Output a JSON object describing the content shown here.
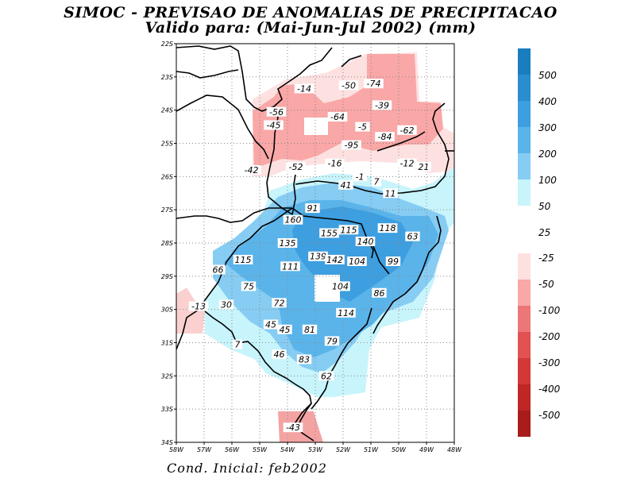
{
  "title": "SIMOC - PREVISAO DE ANOMALIAS DE PRECIPITACAO",
  "subtitle": "Valido para: (Mai-Jun-Jul 2002) (mm)",
  "footer": "Cond. Inicial: feb2002",
  "map": {
    "lat_labels": [
      "22S",
      "23S",
      "24S",
      "25S",
      "26S",
      "27S",
      "28S",
      "29S",
      "30S",
      "31S",
      "32S",
      "33S",
      "34S"
    ],
    "lon_labels": [
      "58W",
      "57W",
      "56W",
      "55W",
      "54W",
      "53W",
      "52W",
      "51W",
      "50W",
      "49W",
      "48W"
    ],
    "lat_range": [
      -34,
      -22
    ],
    "lon_range": [
      -58,
      -48
    ],
    "grid": "dotted"
  },
  "colorbar_positive": {
    "labels": [
      "500",
      "400",
      "300",
      "200",
      "100",
      "50",
      "25"
    ],
    "colors": [
      "#1a7dbe",
      "#2a8dd0",
      "#3d9ee0",
      "#5ab4ea",
      "#86ccf3",
      "#c8f4fb"
    ]
  },
  "colorbar_negative": {
    "labels": [
      "-25",
      "-50",
      "-100",
      "-200",
      "-300",
      "-400",
      "-500"
    ],
    "colors": [
      "#fde1e1",
      "#f9a7a7",
      "#ed7777",
      "#e25252",
      "#d23838",
      "#bf2626",
      "#a81c1c"
    ]
  },
  "contour_labels": [
    {
      "text": "-14",
      "lon": -53.4,
      "lat": -23.35
    },
    {
      "text": "-50",
      "lon": -51.8,
      "lat": -23.25
    },
    {
      "text": "-74",
      "lon": -50.9,
      "lat": -23.2
    },
    {
      "text": "-39",
      "lon": -50.6,
      "lat": -23.85
    },
    {
      "text": "-56",
      "lon": -54.4,
      "lat": -24.05
    },
    {
      "text": "-45",
      "lon": -54.5,
      "lat": -24.45
    },
    {
      "text": "-64",
      "lon": -52.2,
      "lat": -24.2
    },
    {
      "text": "-5",
      "lon": -51.3,
      "lat": -24.5
    },
    {
      "text": "-62",
      "lon": -49.7,
      "lat": -24.6
    },
    {
      "text": "-84",
      "lon": -50.5,
      "lat": -24.8
    },
    {
      "text": "-95",
      "lon": -51.7,
      "lat": -25.05
    },
    {
      "text": "-42",
      "lon": -55.3,
      "lat": -25.8
    },
    {
      "text": "-52",
      "lon": -53.7,
      "lat": -25.7
    },
    {
      "text": "-16",
      "lon": -52.3,
      "lat": -25.6
    },
    {
      "text": "-12",
      "lon": -49.7,
      "lat": -25.6
    },
    {
      "text": "21",
      "lon": -49.1,
      "lat": -25.7
    },
    {
      "text": "-1",
      "lon": -51.4,
      "lat": -26.0
    },
    {
      "text": "7",
      "lon": -50.8,
      "lat": -26.15
    },
    {
      "text": "41",
      "lon": -51.9,
      "lat": -26.25
    },
    {
      "text": "11",
      "lon": -50.3,
      "lat": -26.5
    },
    {
      "text": "91",
      "lon": -53.1,
      "lat": -26.95
    },
    {
      "text": "160",
      "lon": -53.8,
      "lat": -27.3
    },
    {
      "text": "115",
      "lon": -51.8,
      "lat": -27.6
    },
    {
      "text": "155",
      "lon": -52.5,
      "lat": -27.7
    },
    {
      "text": "118",
      "lon": -50.4,
      "lat": -27.55
    },
    {
      "text": "63",
      "lon": -49.5,
      "lat": -27.8
    },
    {
      "text": "135",
      "lon": -54.0,
      "lat": -28.0
    },
    {
      "text": "140",
      "lon": -51.2,
      "lat": -27.95
    },
    {
      "text": "115",
      "lon": -55.6,
      "lat": -28.5
    },
    {
      "text": "111",
      "lon": -53.9,
      "lat": -28.7
    },
    {
      "text": "139",
      "lon": -52.9,
      "lat": -28.4
    },
    {
      "text": "142",
      "lon": -52.3,
      "lat": -28.5
    },
    {
      "text": "104",
      "lon": -51.5,
      "lat": -28.55
    },
    {
      "text": "99",
      "lon": -50.2,
      "lat": -28.55
    },
    {
      "text": "66",
      "lon": -56.5,
      "lat": -28.8
    },
    {
      "text": "75",
      "lon": -55.4,
      "lat": -29.3
    },
    {
      "text": "104",
      "lon": -52.1,
      "lat": -29.3
    },
    {
      "text": "86",
      "lon": -50.7,
      "lat": -29.5
    },
    {
      "text": "72",
      "lon": -54.3,
      "lat": -29.8
    },
    {
      "text": "-13",
      "lon": -57.2,
      "lat": -29.9
    },
    {
      "text": "30",
      "lon": -56.2,
      "lat": -29.85
    },
    {
      "text": "114",
      "lon": -51.9,
      "lat": -30.1
    },
    {
      "text": "45",
      "lon": -54.6,
      "lat": -30.45
    },
    {
      "text": "45",
      "lon": -54.1,
      "lat": -30.6
    },
    {
      "text": "81",
      "lon": -53.2,
      "lat": -30.6
    },
    {
      "text": "79",
      "lon": -52.4,
      "lat": -30.95
    },
    {
      "text": "7",
      "lon": -55.8,
      "lat": -31.05
    },
    {
      "text": "46",
      "lon": -54.3,
      "lat": -31.35
    },
    {
      "text": "83",
      "lon": -53.4,
      "lat": -31.5
    },
    {
      "text": "62",
      "lon": -52.6,
      "lat": -32.0
    },
    {
      "text": "-43",
      "lon": -53.8,
      "lat": -33.55
    }
  ]
}
